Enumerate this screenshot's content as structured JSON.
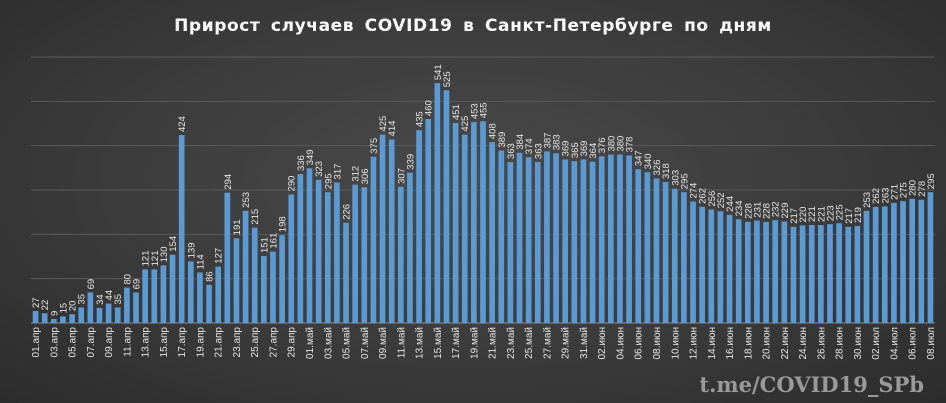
{
  "chart_data": {
    "type": "bar",
    "title": "Прирост  случаев  COVID19  в  Санкт-Петербурге   по  дням",
    "xlabel": "",
    "ylabel": "",
    "ylim": [
      0,
      600
    ],
    "grid": true,
    "bar_color": "#5b9bd5",
    "categories": [
      "01.апр",
      "02.апр",
      "03.апр",
      "04.апр",
      "05.апр",
      "06.апр",
      "07.апр",
      "08.апр",
      "09.апр",
      "10.апр",
      "11.апр",
      "12.апр",
      "13.апр",
      "14.апр",
      "15.апр",
      "16.апр",
      "17.апр",
      "18.апр",
      "19.апр",
      "20.апр",
      "21.апр",
      "22.апр",
      "23.апр",
      "24.апр",
      "25.апр",
      "26.апр",
      "27.апр",
      "28.апр",
      "29.апр",
      "30.апр",
      "01.май",
      "02.май",
      "03.май",
      "04.май",
      "05.май",
      "06.май",
      "07.май",
      "08.май",
      "09.май",
      "10.май",
      "11.май",
      "12.май",
      "13.май",
      "14.май",
      "15.май",
      "16.май",
      "17.май",
      "18.май",
      "19.май",
      "20.май",
      "21.май",
      "22.май",
      "23.май",
      "24.май",
      "25.май",
      "26.май",
      "27.май",
      "28.май",
      "29.май",
      "30.май",
      "31.май",
      "01.июн",
      "02.июн",
      "03.июн",
      "04.июн",
      "05.июн",
      "06.июн",
      "07.июн",
      "08.июн",
      "09.июн",
      "10.июн",
      "11.июн",
      "12.июн",
      "13.июн",
      "14.июн",
      "15.июн",
      "16.июн",
      "17.июн",
      "18.июн",
      "19.июн",
      "20.июн",
      "21.июн",
      "22.июн",
      "23.июн",
      "24.июн",
      "25.июн",
      "26.июн",
      "27.июн",
      "28.июн",
      "29.июн",
      "30.июн",
      "01.июл",
      "02.июл",
      "03.июл",
      "04.июл",
      "05.июл",
      "06.июл",
      "07.июл",
      "08.июл"
    ],
    "values": [
      27,
      22,
      9,
      15,
      20,
      35,
      69,
      34,
      44,
      35,
      80,
      69,
      121,
      121,
      130,
      154,
      424,
      139,
      114,
      86,
      127,
      294,
      191,
      253,
      215,
      151,
      161,
      198,
      290,
      336,
      349,
      323,
      295,
      317,
      226,
      312,
      306,
      375,
      425,
      414,
      307,
      339,
      435,
      460,
      541,
      525,
      451,
      425,
      453,
      455,
      408,
      389,
      363,
      384,
      374,
      363,
      387,
      383,
      369,
      365,
      369,
      364,
      376,
      380,
      380,
      378,
      347,
      340,
      326,
      318,
      303,
      295,
      274,
      262,
      256,
      252,
      244,
      234,
      228,
      231,
      228,
      232,
      229,
      217,
      220,
      221,
      221,
      223,
      225,
      217,
      219,
      253,
      262,
      263,
      271,
      275,
      280,
      278,
      295
    ],
    "x_tick_every": 2,
    "watermark": "t.me/COVID19_SPb"
  }
}
